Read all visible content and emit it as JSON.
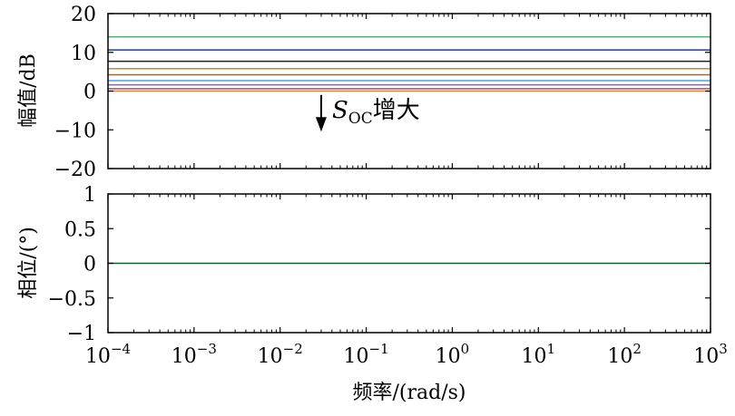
{
  "chart_data": [
    {
      "id": "magnitude",
      "type": "line",
      "ylabel": "幅值/dB",
      "ylim": [
        -20,
        20
      ],
      "xscale": "log",
      "xlim": [
        0.0001,
        1000
      ],
      "yticks": [
        20,
        10,
        0,
        -10,
        -20
      ],
      "ytick_labels": [
        "20",
        "10",
        "0",
        "−10",
        "−20"
      ],
      "series": [
        {
          "values": [
            14,
            14
          ],
          "color": "#5aa875"
        },
        {
          "values": [
            10.6,
            10.6
          ],
          "color": "#1f3a93"
        },
        {
          "values": [
            7.7,
            7.7
          ],
          "color": "#222222"
        },
        {
          "values": [
            5.8,
            5.8
          ],
          "color": "#c8883a"
        },
        {
          "values": [
            4.2,
            4.2
          ],
          "color": "#8e6f4e"
        },
        {
          "values": [
            2.7,
            2.7
          ],
          "color": "#4aa3df"
        },
        {
          "values": [
            1.6,
            1.6
          ],
          "color": "#9b59b6"
        },
        {
          "values": [
            0.6,
            0.6
          ],
          "color": "#b04a6a"
        },
        {
          "values": [
            0,
            0
          ],
          "color": "#d98a4a"
        }
      ],
      "annotation": {
        "symbol": "S",
        "subscript": "OC",
        "suffix": "增大",
        "arrow": "down",
        "x": 0.03,
        "y_from": -1,
        "y_to": -10
      }
    },
    {
      "id": "phase",
      "type": "line",
      "ylabel": "相位/(°)",
      "xlabel": "频率/(rad/s)",
      "ylim": [
        -1,
        1
      ],
      "xscale": "log",
      "xlim": [
        0.0001,
        1000
      ],
      "yticks": [
        1,
        0.5,
        0,
        -0.5,
        -1
      ],
      "ytick_labels": [
        "1",
        "0.5",
        "0",
        "−0.5",
        "−1"
      ],
      "xticks": [
        0.0001,
        0.001,
        0.01,
        0.1,
        1,
        10,
        100,
        1000
      ],
      "xtick_base": "10",
      "xtick_exponents": [
        "−4",
        "−3",
        "−2",
        "−1",
        "0",
        "1",
        "2",
        "3"
      ],
      "series": [
        {
          "values": [
            0,
            0
          ],
          "color": "#1a5e2a"
        }
      ]
    }
  ]
}
